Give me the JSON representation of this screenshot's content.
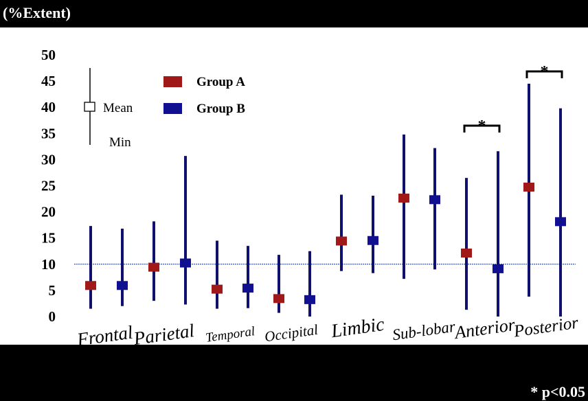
{
  "ylabel": "(%Extent)",
  "footnote": "* p<0.05",
  "colors": {
    "group_a": "#a01818",
    "group_b": "#101090",
    "bar": "#10106e",
    "reference": "#0a2a8a"
  },
  "key": {
    "mean_label": "Mean",
    "min_label": "Min"
  },
  "chart_data": {
    "type": "range-marker",
    "title": "",
    "xlabel": "",
    "ylabel": "(%Extent)",
    "ylim": [
      0,
      50
    ],
    "yticks": [
      "0",
      "5",
      "10",
      "15",
      "20",
      "25",
      "30",
      "35",
      "40",
      "45",
      "50"
    ],
    "categories": [
      "Frontal",
      "Parietal",
      "Temporal",
      "Occipital",
      "Limbic",
      "Sub-lobar",
      "Anterior",
      "Posterior"
    ],
    "reference_line": 10,
    "grid": false,
    "legend_position": "top-left",
    "series": [
      {
        "name": "Group A",
        "color": "#a01818",
        "mean": [
          6,
          9.5,
          5.3,
          3.5,
          14.5,
          22.7,
          12.2,
          24.8
        ],
        "min": [
          1.5,
          3,
          1.5,
          0.7,
          8.7,
          7.2,
          1.3,
          3.8
        ],
        "max": [
          17.3,
          18.2,
          14.5,
          11.8,
          23.3,
          34.8,
          26.5,
          44.5
        ]
      },
      {
        "name": "Group B",
        "color": "#101090",
        "mean": [
          6,
          10.3,
          5.5,
          3.3,
          14.6,
          22.4,
          9.2,
          18.2
        ],
        "min": [
          2,
          2.3,
          1.6,
          0,
          8.3,
          9,
          0,
          0
        ],
        "max": [
          16.8,
          30.7,
          13.5,
          12.5,
          23.1,
          32.2,
          31.6,
          39.8
        ]
      }
    ],
    "annotations": [
      {
        "text": "*",
        "category": "Anterior"
      },
      {
        "text": "*",
        "category": "Posterior"
      }
    ]
  }
}
